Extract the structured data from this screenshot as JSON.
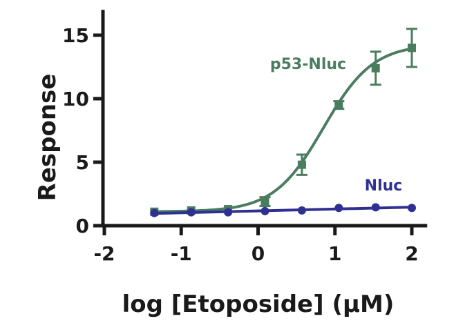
{
  "chart_data": {
    "type": "line",
    "title": "",
    "xlabel": "log [Etoposide] (μM)",
    "ylabel": "Response",
    "xlim": [
      -2,
      2.2
    ],
    "ylim": [
      0,
      17
    ],
    "xticks": [
      -2,
      -1,
      0,
      1,
      2
    ],
    "xtick_labels": [
      "-2",
      "-1",
      "0",
      "1",
      "2"
    ],
    "yticks": [
      0,
      5,
      10,
      15
    ],
    "ytick_labels": [
      "0",
      "5",
      "10",
      "15"
    ],
    "grid": false,
    "legend": "inline labels",
    "series": [
      {
        "name": "p53-Nluc",
        "color": "#4a7c5f",
        "marker": "square",
        "x": [
          -1.35,
          -0.87,
          -0.39,
          0.09,
          0.57,
          1.05,
          1.53,
          2.0
        ],
        "y": [
          1.1,
          1.2,
          1.3,
          1.9,
          4.8,
          9.5,
          12.4,
          14.0
        ],
        "error": [
          0.1,
          0.1,
          0.1,
          0.35,
          0.8,
          0.3,
          1.3,
          1.5
        ],
        "fit": {
          "model": "sigmoid",
          "bottom": 1.1,
          "top": 14.3,
          "logEC50": 0.85,
          "hill": 1.35
        }
      },
      {
        "name": "Nluc",
        "color": "#2e3192",
        "marker": "circle",
        "x": [
          -1.35,
          -0.87,
          -0.39,
          0.09,
          0.57,
          1.05,
          1.53,
          2.0
        ],
        "y": [
          1.0,
          1.05,
          1.05,
          1.15,
          1.2,
          1.4,
          1.45,
          1.4
        ],
        "error": [
          0.05,
          0.05,
          0.05,
          0.05,
          0.05,
          0.05,
          0.05,
          0.05
        ],
        "fit": {
          "model": "linear"
        }
      }
    ]
  }
}
